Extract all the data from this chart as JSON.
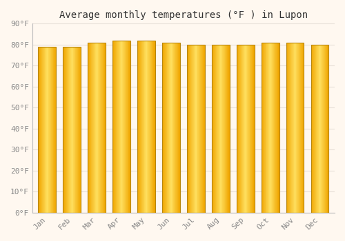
{
  "title": "Average monthly temperatures (°F ) in Lupon",
  "months": [
    "Jan",
    "Feb",
    "Mar",
    "Apr",
    "May",
    "Jun",
    "Jul",
    "Aug",
    "Sep",
    "Oct",
    "Nov",
    "Dec"
  ],
  "values": [
    79,
    79,
    81,
    82,
    82,
    81,
    80,
    80,
    80,
    81,
    81,
    80
  ],
  "ylim": [
    0,
    90
  ],
  "yticks": [
    0,
    10,
    20,
    30,
    40,
    50,
    60,
    70,
    80,
    90
  ],
  "ytick_labels": [
    "0°F",
    "10°F",
    "20°F",
    "30°F",
    "40°F",
    "50°F",
    "60°F",
    "70°F",
    "80°F",
    "90°F"
  ],
  "bar_color_center": "#FFD966",
  "bar_color_edge": "#F0A500",
  "bar_outline_color": "#B8860B",
  "background_color": "#FFF8F0",
  "plot_bg_color": "#FFF8F0",
  "grid_color": "#E8E0D8",
  "title_fontsize": 10,
  "tick_fontsize": 8,
  "tick_color": "#888888",
  "font_family": "monospace",
  "bar_width": 0.72
}
